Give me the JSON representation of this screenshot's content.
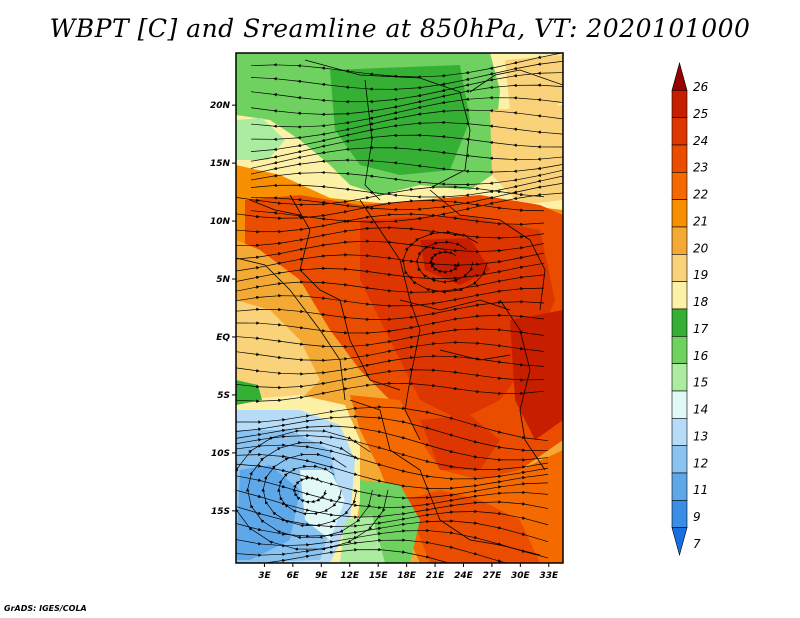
{
  "title": "WBPT [C] and Sreamline at 850hPa, VT: 2020101000",
  "credit": "GrADS: IGES/COLA",
  "map": {
    "variable": "Wet-bulb potential temperature (WBPT)",
    "units": "C",
    "level": "850hPa",
    "valid_time": "2020101000",
    "lat_range": [
      -19.5,
      24.5
    ],
    "lon_range": [
      0,
      34.5
    ],
    "lat_ticks": [
      "20N",
      "15N",
      "10N",
      "5N",
      "EQ",
      "5S",
      "10S",
      "15S"
    ],
    "lat_tick_values": [
      20,
      15,
      10,
      5,
      0,
      -5,
      -10,
      -15
    ],
    "lon_ticks": [
      "3E",
      "6E",
      "9E",
      "12E",
      "15E",
      "18E",
      "21E",
      "24E",
      "27E",
      "30E",
      "33E"
    ],
    "lon_tick_values": [
      3,
      6,
      9,
      12,
      15,
      18,
      21,
      24,
      27,
      30,
      33
    ]
  },
  "colorbar": {
    "labels": [
      "26",
      "25",
      "24",
      "23",
      "22",
      "21",
      "20",
      "19",
      "18",
      "17",
      "16",
      "15",
      "14",
      "13",
      "12",
      "11",
      "9",
      "7"
    ],
    "colors": [
      "#960000",
      "#c81e00",
      "#de3600",
      "#eb4d00",
      "#f56a00",
      "#f78f00",
      "#f5a935",
      "#f9d27a",
      "#fdf1a8",
      "#35b035",
      "#6fd15f",
      "#aceca0",
      "#e0f8f6",
      "#b6dcf8",
      "#8ac2f0",
      "#5ea8ea",
      "#3b8ee6",
      "#1a6fe0"
    ]
  }
}
